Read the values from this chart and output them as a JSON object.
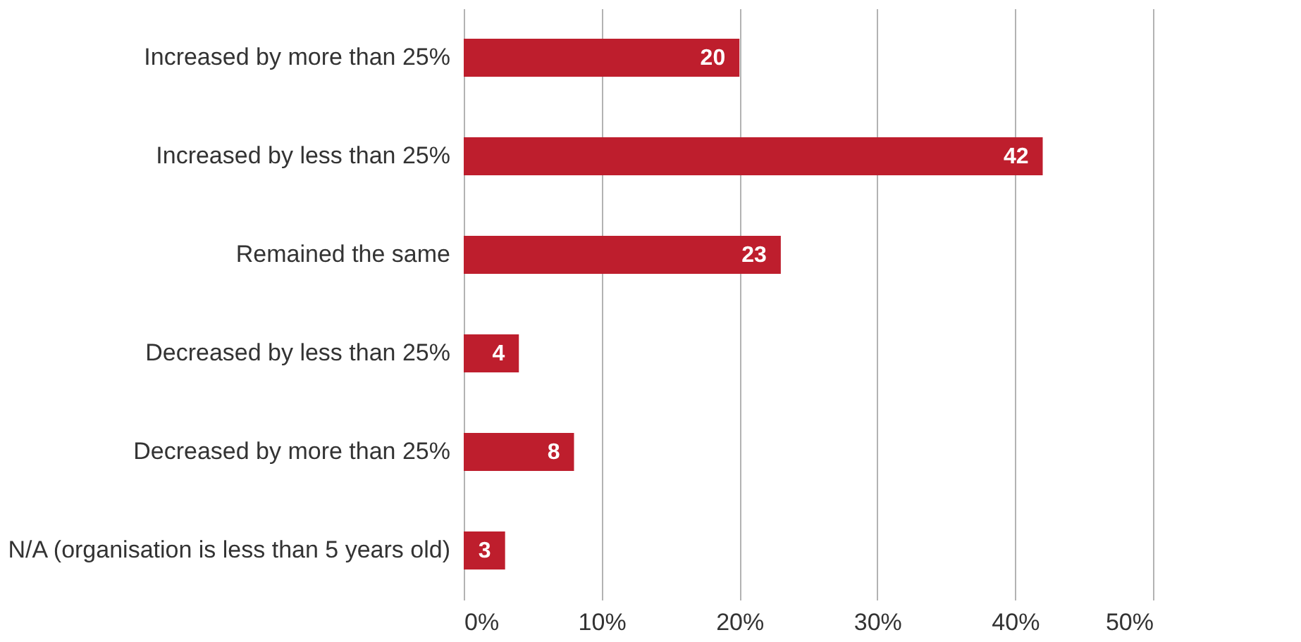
{
  "chart_data": {
    "type": "bar",
    "orientation": "horizontal",
    "categories": [
      "Increased by more than 25%",
      "Increased by less than 25%",
      "Remained the same",
      "Decreased by less than 25%",
      "Decreased by more than 25%",
      "N/A (organisation is less than 5 years old)"
    ],
    "values": [
      20,
      42,
      23,
      4,
      8,
      3
    ],
    "color": "#be1e2d",
    "xlim": [
      0,
      50
    ],
    "xticks": [
      {
        "value": 0,
        "label": "0%"
      },
      {
        "value": 10,
        "label": "10%"
      },
      {
        "value": 20,
        "label": "20%"
      },
      {
        "value": 30,
        "label": "30%"
      },
      {
        "value": 40,
        "label": "40%"
      },
      {
        "value": 50,
        "label": "50%"
      }
    ],
    "grid": "x",
    "data_labels": true
  }
}
